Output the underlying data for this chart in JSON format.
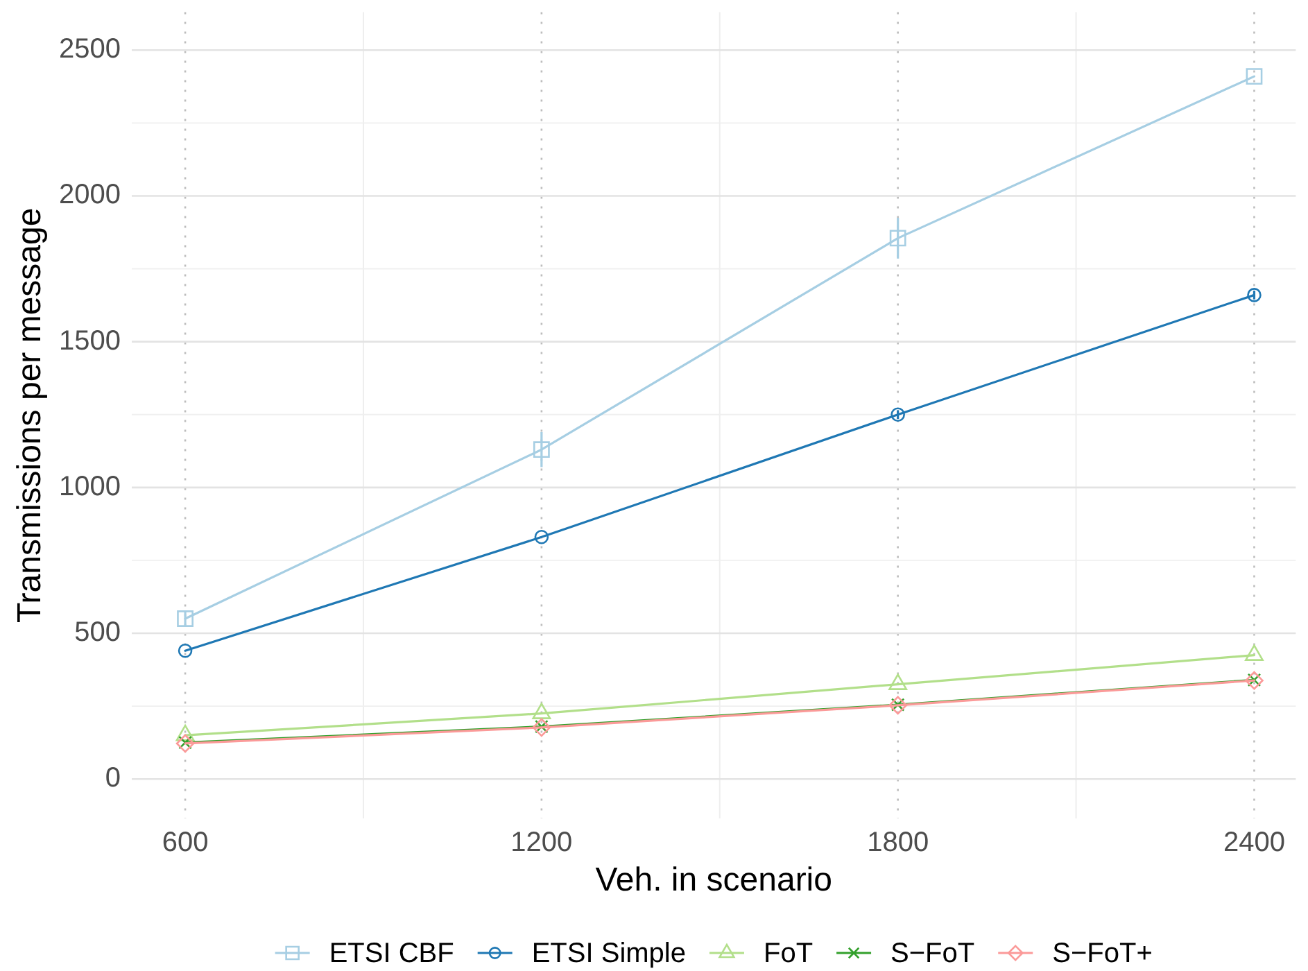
{
  "chart_data": {
    "type": "line",
    "xlabel": "Veh. in scenario",
    "ylabel": "Transmissions per message",
    "x": [
      600,
      1200,
      1800,
      2400
    ],
    "xlim": [
      510,
      2470
    ],
    "xticks": [
      600,
      {
        "value": 900,
        "label": null
      },
      1200,
      {
        "value": 1500,
        "label": null
      },
      1800,
      {
        "value": 2100,
        "label": null
      },
      2400
    ],
    "ylim": [
      -135,
      2630
    ],
    "yticks": [
      0,
      {
        "value": 250,
        "label": null
      },
      500,
      {
        "value": 750,
        "label": null
      },
      1000,
      {
        "value": 1250,
        "label": null
      },
      1500,
      {
        "value": 1750,
        "label": null
      },
      2000,
      {
        "value": 2250,
        "label": null
      },
      2500
    ],
    "grid": true,
    "legend": "bottom",
    "line_style": "solid",
    "series": [
      {
        "name": "ETSI CBF",
        "color": "#a6cee3",
        "marker": "square",
        "values": [
          550,
          1130,
          1855,
          2410
        ],
        "errors": [
          25,
          60,
          70,
          null
        ]
      },
      {
        "name": "ETSI Simple",
        "color": "#1f78b4",
        "marker": "circle",
        "values": [
          440,
          830,
          1250,
          1660
        ],
        "errors": [
          null,
          null,
          15,
          15
        ]
      },
      {
        "name": "FoT",
        "color": "#b2df8a",
        "marker": "triangle",
        "values": [
          150,
          225,
          325,
          425
        ]
      },
      {
        "name": "S−FoT",
        "color": "#33a02c",
        "marker": "cross",
        "values": [
          125,
          180,
          255,
          340
        ]
      },
      {
        "name": "S−FoT+",
        "color": "#fb9a99",
        "marker": "diamond",
        "values": [
          122,
          177,
          253,
          338
        ]
      }
    ]
  }
}
